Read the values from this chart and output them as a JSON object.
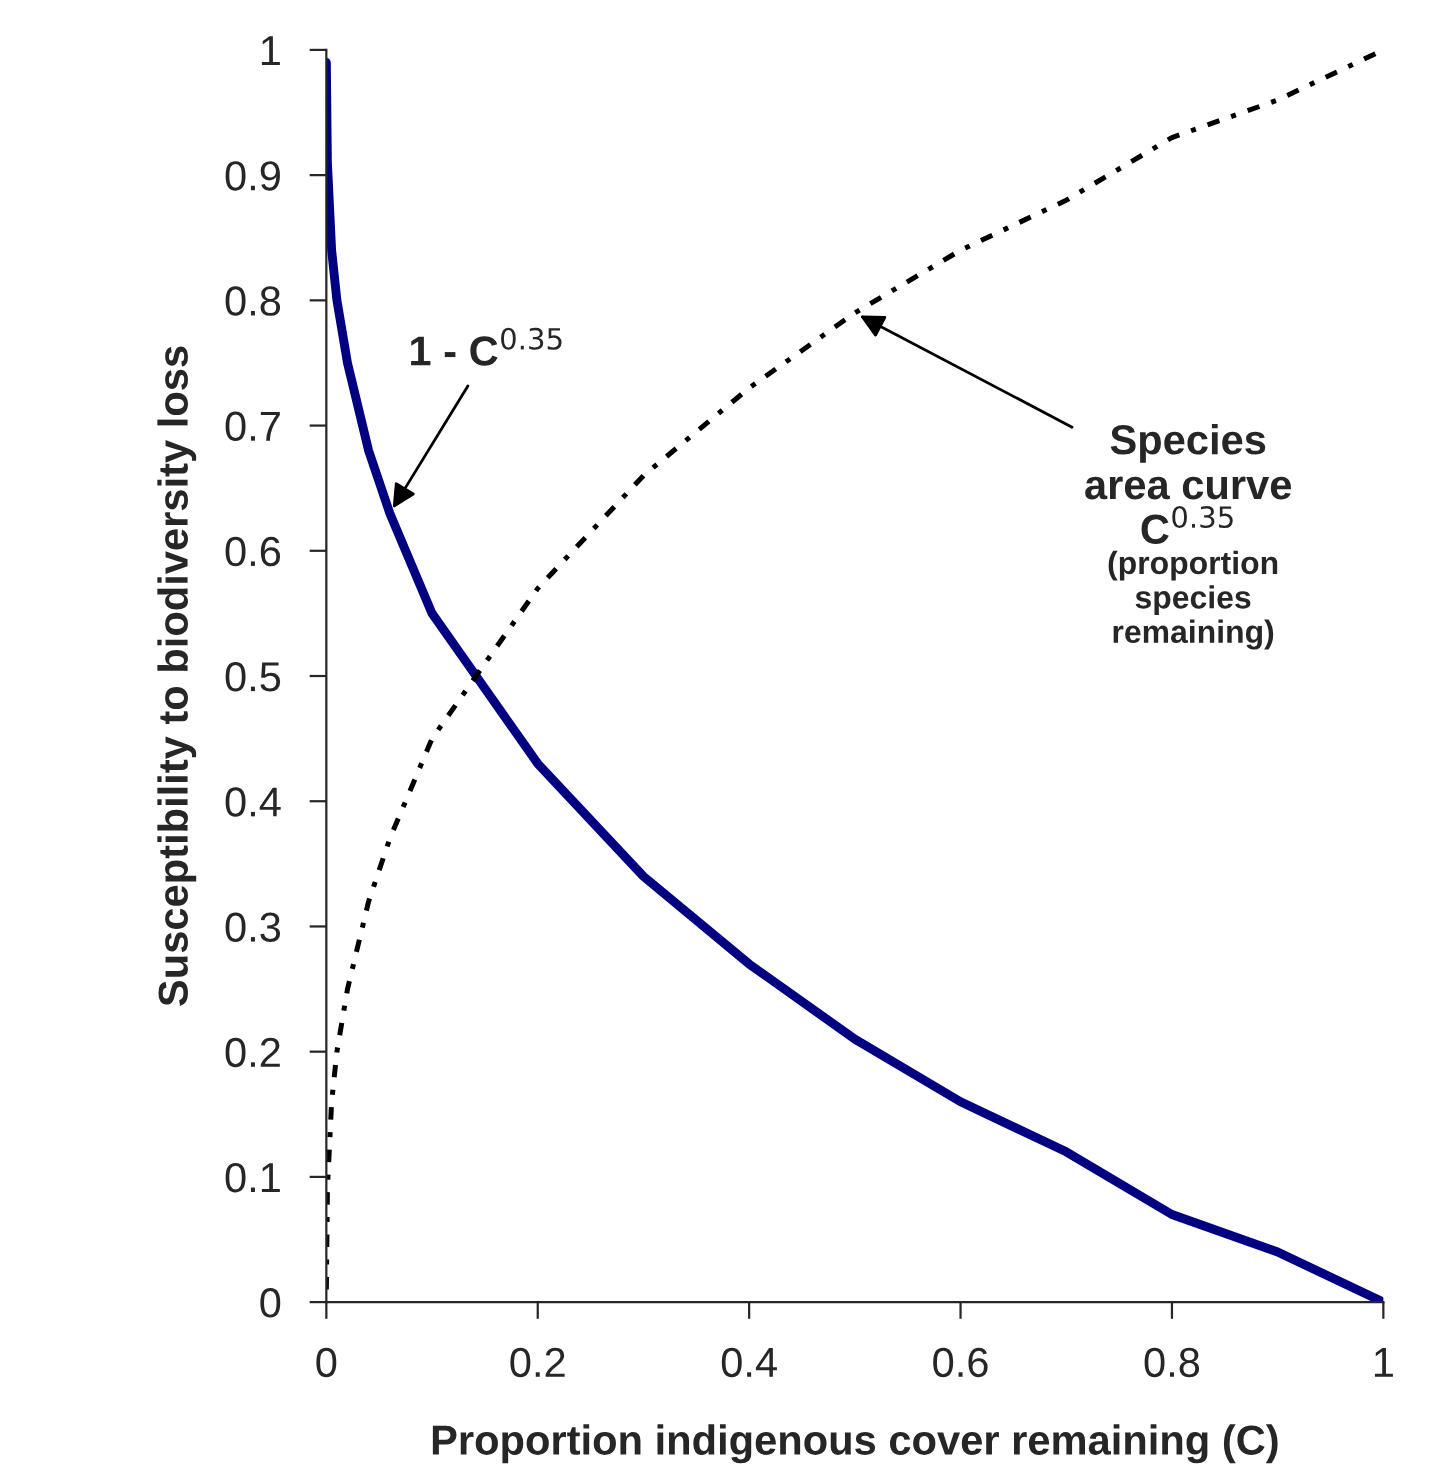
{
  "chart_data": {
    "type": "line",
    "xlabel": "Proportion indigenous cover remaining (C)",
    "ylabel": "Susceptibility to biodiversity loss",
    "x": [
      0,
      0.001,
      0.005,
      0.01,
      0.02,
      0.04,
      0.06,
      0.1,
      0.15,
      0.2,
      0.3,
      0.4,
      0.5,
      0.6,
      0.7,
      0.8,
      0.9,
      1
    ],
    "series": [
      {
        "color": "#000080",
        "line_style": "solid",
        "values": [
          0.99,
          0.91,
          0.84,
          0.8,
          0.75,
          0.68,
          0.63,
          0.55,
          0.49,
          0.43,
          0.34,
          0.27,
          0.21,
          0.16,
          0.12,
          0.07,
          0.04,
          0
        ]
      },
      {
        "color": "#000000",
        "line_style": "dotted",
        "values": [
          0.01,
          0.09,
          0.16,
          0.2,
          0.25,
          0.32,
          0.37,
          0.45,
          0.51,
          0.57,
          0.66,
          0.73,
          0.79,
          0.84,
          0.88,
          0.93,
          0.96,
          1
        ]
      }
    ],
    "annotations": [
      {
        "text": "1 - C$^{0.35}$",
        "x": 0.06,
        "y": 0.63
      },
      {
        "text": "Species\narea curve\nC$^{0.35}$",
        "x": 0.5,
        "y": 0.79
      },
      "(proportion\nspecies\nremaining)"
    ],
    "xlim": [
      0,
      1
    ],
    "ylim": [
      0,
      1
    ],
    "xticks": [
      0,
      {
        "value": 0.2,
        "label": "0.2"
      },
      {
        "value": 0.4,
        "label": "0.4"
      },
      {
        "value": 0.6,
        "label": "0.6"
      },
      {
        "value": 0.8,
        "label": "0.8"
      },
      1
    ],
    "yticks": [
      0,
      {
        "value": 0.1,
        "label": "0.1"
      },
      {
        "value": 0.2,
        "label": "0.2"
      },
      {
        "value": 0.3,
        "label": "0.3"
      },
      {
        "value": 0.4,
        "label": "0.4"
      },
      {
        "value": 0.5,
        "label": "0.5"
      },
      {
        "value": 0.6,
        "label": "0.6"
      },
      {
        "value": 0.7,
        "label": "0.7"
      },
      {
        "value": 0.8,
        "label": "0.8"
      },
      {
        "value": 0.9,
        "label": "0.9"
      },
      1
    ]
  }
}
